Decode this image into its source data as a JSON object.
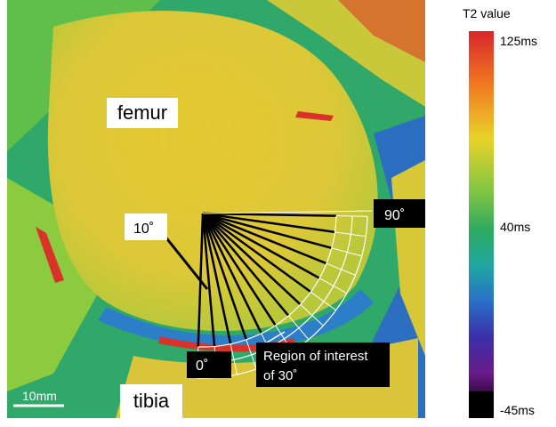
{
  "image": {
    "labels": {
      "femur": "femur",
      "tibia": "tibia"
    },
    "annotations": {
      "angle_10": "10˚",
      "angle_90": "90˚",
      "angle_0": "0˚",
      "roi_line1": "Region of interest",
      "roi_line2": "of 30˚"
    },
    "scale_bar": "10mm"
  },
  "colorbar": {
    "title": "T2 value",
    "labels": [
      "125ms",
      "40ms",
      "-45ms"
    ]
  }
}
